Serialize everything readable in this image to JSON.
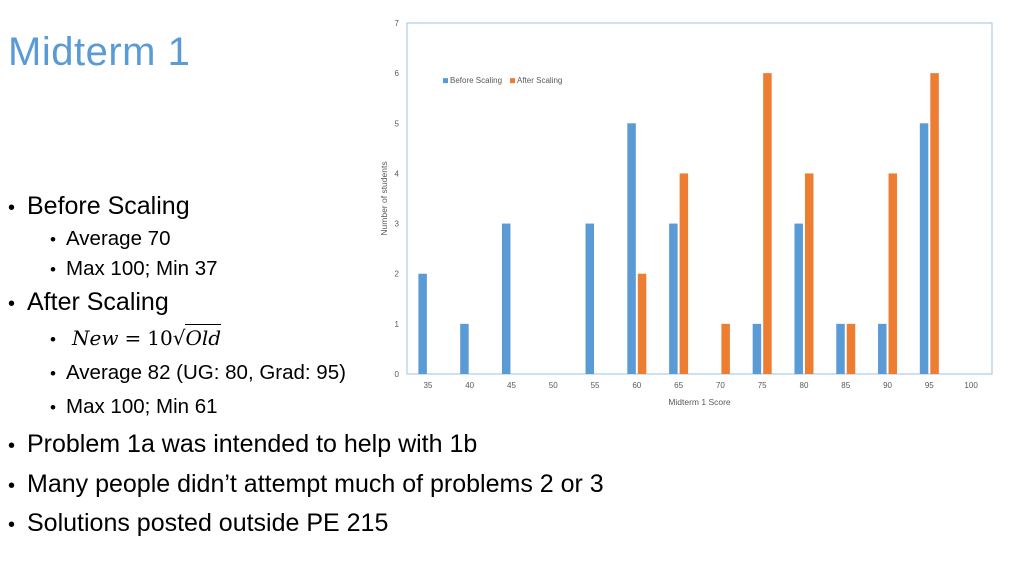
{
  "slide": {
    "title": "Midterm 1",
    "bullets": {
      "before_scaling": "Before Scaling",
      "before_avg": "Average 70",
      "before_range": "Max 100; Min 37",
      "after_scaling": "After Scaling",
      "formula": {
        "lhs": "New",
        "eq": "=",
        "coef": "10",
        "radical": "√",
        "arg": "Old"
      },
      "after_avg": "Average 82 (UG: 80, Grad: 95)",
      "after_range": "Max 100; Min 61",
      "problem_1a": "Problem 1a was intended to help with 1b",
      "problems_2_3": "Many people didn’t attempt much of problems 2 or 3",
      "solutions": "Solutions posted outside PE 215"
    }
  },
  "chart_data": {
    "type": "bar",
    "title": "",
    "xlabel": "Midterm 1 Score",
    "ylabel": "Number of students",
    "categories": [
      "35",
      "40",
      "45",
      "50",
      "55",
      "60",
      "65",
      "70",
      "75",
      "80",
      "85",
      "90",
      "95",
      "100"
    ],
    "series": [
      {
        "name": "Before Scaling",
        "color": "#5b9bd5",
        "values": [
          2,
          1,
          3,
          0,
          3,
          5,
          3,
          0,
          1,
          3,
          1,
          1,
          5,
          0
        ]
      },
      {
        "name": "After Scaling",
        "color": "#ed7d31",
        "values": [
          0,
          0,
          0,
          0,
          0,
          2,
          4,
          1,
          6,
          4,
          1,
          4,
          6,
          0
        ]
      }
    ],
    "ylim": [
      0,
      7
    ],
    "yticks": [
      "0",
      "1",
      "2",
      "3",
      "4",
      "5",
      "6",
      "7"
    ],
    "grid": false,
    "legend_position": "top-left",
    "plot_border_color": "#9dc3e6"
  }
}
